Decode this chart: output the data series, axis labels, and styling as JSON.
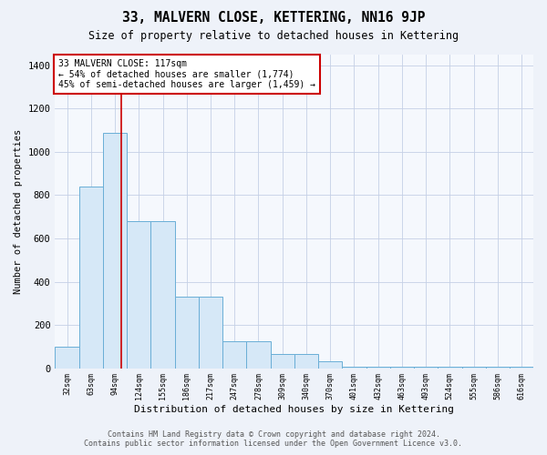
{
  "title": "33, MALVERN CLOSE, KETTERING, NN16 9JP",
  "subtitle": "Size of property relative to detached houses in Kettering",
  "xlabel": "Distribution of detached houses by size in Kettering",
  "ylabel": "Number of detached properties",
  "footer_line1": "Contains HM Land Registry data © Crown copyright and database right 2024.",
  "footer_line2": "Contains public sector information licensed under the Open Government Licence v3.0.",
  "bar_edges": [
    32,
    63,
    94,
    124,
    155,
    186,
    217,
    247,
    278,
    309,
    340,
    370,
    401,
    432,
    463,
    493,
    524,
    555,
    586,
    616,
    647
  ],
  "bar_heights": [
    100,
    840,
    1090,
    680,
    680,
    330,
    330,
    125,
    125,
    65,
    65,
    30,
    8,
    8,
    8,
    8,
    8,
    8,
    8,
    8
  ],
  "bar_facecolor": "#d6e8f7",
  "bar_edgecolor": "#6aaed6",
  "vline_x": 117,
  "vline_color": "#cc0000",
  "annotation_line1": "33 MALVERN CLOSE: 117sqm",
  "annotation_line2": "← 54% of detached houses are smaller (1,774)",
  "annotation_line3": "45% of semi-detached houses are larger (1,459) →",
  "annotation_box_color": "#cc0000",
  "ylim": [
    0,
    1450
  ],
  "yticks": [
    0,
    200,
    400,
    600,
    800,
    1000,
    1200,
    1400
  ],
  "bg_color": "#eef2f9",
  "plot_bg_color": "#f5f8fd",
  "grid_color": "#c5d0e6"
}
